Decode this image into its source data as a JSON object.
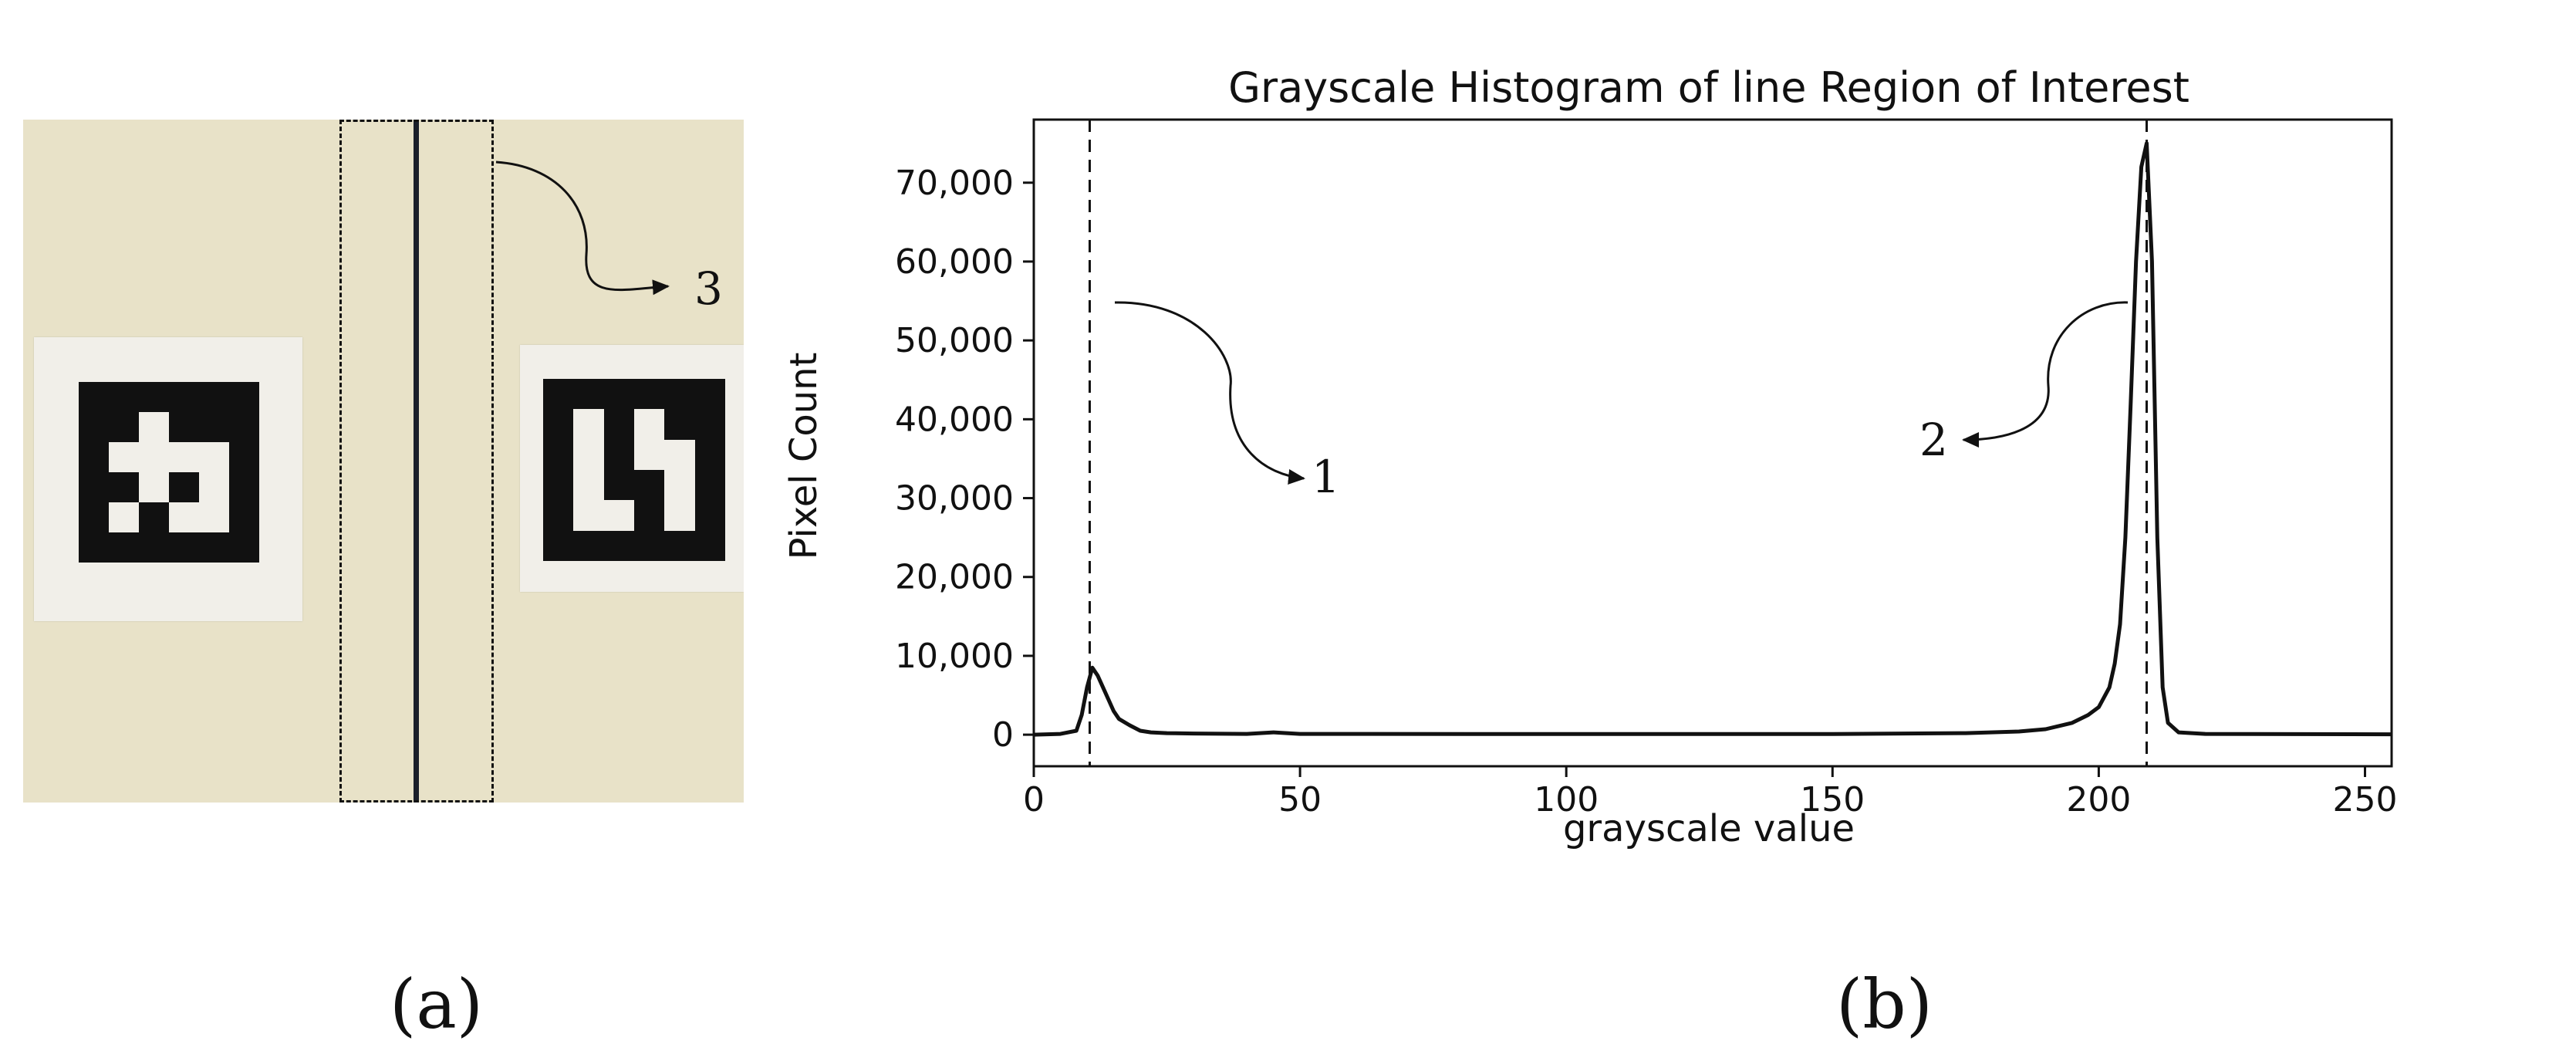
{
  "panel_labels": {
    "a": "(a)",
    "b": "(b)"
  },
  "photo": {
    "roi_annotation": "3",
    "colors": {
      "background": "#e8e2c8",
      "marker_black": "#111111",
      "line": "#1a1f2a"
    }
  },
  "chart_data": {
    "type": "line",
    "title": "Grayscale Histogram of line Region of Interest",
    "xlabel": "grayscale value",
    "ylabel": "Pixel Count",
    "xlim": [
      0,
      255
    ],
    "ylim": [
      -4000,
      78000
    ],
    "xticks": [
      0,
      50,
      100,
      150,
      200,
      250
    ],
    "xtick_labels": [
      "0",
      "50",
      "100",
      "150",
      "200",
      "250"
    ],
    "yticks": [
      0,
      10000,
      20000,
      30000,
      40000,
      50000,
      60000,
      70000
    ],
    "ytick_labels": [
      "0",
      "10,000",
      "20,000",
      "30,000",
      "40,000",
      "50,000",
      "60,000",
      "70,000"
    ],
    "grid": false,
    "series": [
      {
        "x": [
          0,
          5,
          8,
          9,
          10,
          11,
          12,
          13,
          14,
          15,
          16,
          18,
          20,
          22,
          25,
          30,
          40,
          45,
          50,
          100,
          150,
          175,
          185,
          190,
          195,
          198,
          200,
          202,
          203,
          204,
          205,
          206,
          207,
          208,
          209,
          210,
          211,
          212,
          213,
          215,
          220,
          255
        ],
        "y": [
          0,
          100,
          500,
          2500,
          6000,
          8500,
          7500,
          6000,
          4500,
          3000,
          2000,
          1200,
          500,
          300,
          200,
          150,
          100,
          300,
          100,
          80,
          80,
          200,
          400,
          700,
          1500,
          2500,
          3500,
          6000,
          9000,
          14000,
          25000,
          42000,
          60000,
          72000,
          75000,
          60000,
          25000,
          6000,
          1500,
          300,
          100,
          50
        ]
      }
    ],
    "vlines": [
      10.5,
      209
    ],
    "annotations": [
      "1",
      "2"
    ]
  }
}
